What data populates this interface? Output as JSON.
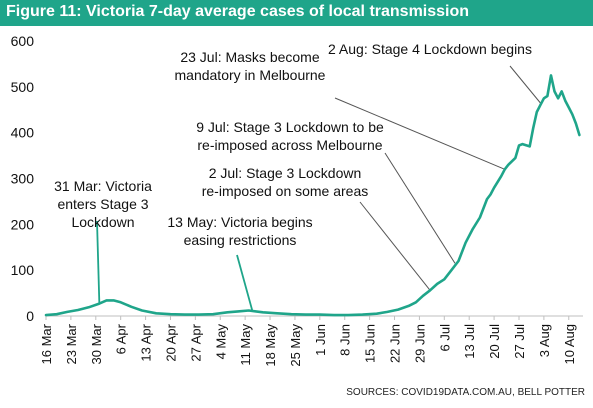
{
  "title": "Figure 11: Victoria 7-day average cases of local transmission",
  "source": "SOURCES: COVID19DATA.COM.AU, BELL POTTER",
  "colors": {
    "header": "#1fa58a",
    "line": "#1fa58a",
    "text": "#111111",
    "axis": "#bfbfbf"
  },
  "chart_data": {
    "type": "line",
    "title": "Figure 11: Victoria 7-day average cases of local transmission",
    "xlabel": "",
    "ylabel": "",
    "ylim": [
      0,
      600
    ],
    "yticks": [
      0,
      100,
      200,
      300,
      400,
      500,
      600
    ],
    "xlim": [
      "2020-03-16",
      "2020-08-14"
    ],
    "xticks": [
      "16 Mar",
      "23 Mar",
      "30 Mar",
      "6 Apr",
      "13 Apr",
      "20 Apr",
      "27 Apr",
      "4 May",
      "11 May",
      "18 May",
      "25 May",
      "1 Jun",
      "8 Jun",
      "15 Jun",
      "22 Jun",
      "29 Jun",
      "6 Jul",
      "13 Jul",
      "20 Jul",
      "27 Jul",
      "3 Aug",
      "10 Aug"
    ],
    "xtick_dates": [
      "2020-03-16",
      "2020-03-23",
      "2020-03-30",
      "2020-04-06",
      "2020-04-13",
      "2020-04-20",
      "2020-04-27",
      "2020-05-04",
      "2020-05-11",
      "2020-05-18",
      "2020-05-25",
      "2020-06-01",
      "2020-06-08",
      "2020-06-15",
      "2020-06-22",
      "2020-06-29",
      "2020-07-06",
      "2020-07-13",
      "2020-07-20",
      "2020-07-27",
      "2020-08-03",
      "2020-08-10"
    ],
    "grid": false,
    "legend": "none",
    "series": [
      {
        "x": [
          "2020-03-16",
          "2020-03-19",
          "2020-03-22",
          "2020-03-25",
          "2020-03-28",
          "2020-03-31",
          "2020-04-02",
          "2020-04-04",
          "2020-04-06",
          "2020-04-09",
          "2020-04-12",
          "2020-04-16",
          "2020-04-20",
          "2020-04-24",
          "2020-04-28",
          "2020-05-02",
          "2020-05-06",
          "2020-05-09",
          "2020-05-12",
          "2020-05-16",
          "2020-05-20",
          "2020-05-24",
          "2020-05-28",
          "2020-06-01",
          "2020-06-05",
          "2020-06-09",
          "2020-06-13",
          "2020-06-17",
          "2020-06-20",
          "2020-06-23",
          "2020-06-26",
          "2020-06-28",
          "2020-06-30",
          "2020-07-02",
          "2020-07-04",
          "2020-07-06",
          "2020-07-08",
          "2020-07-10",
          "2020-07-12",
          "2020-07-14",
          "2020-07-16",
          "2020-07-18",
          "2020-07-19",
          "2020-07-20",
          "2020-07-22",
          "2020-07-23",
          "2020-07-24",
          "2020-07-26",
          "2020-07-27",
          "2020-07-28",
          "2020-07-30",
          "2020-07-31",
          "2020-08-01",
          "2020-08-02",
          "2020-08-03",
          "2020-08-04",
          "2020-08-05",
          "2020-08-06",
          "2020-08-07",
          "2020-08-08",
          "2020-08-09",
          "2020-08-10",
          "2020-08-11",
          "2020-08-12",
          "2020-08-13"
        ],
        "values": [
          2,
          4,
          9,
          13,
          19,
          27,
          34,
          34,
          30,
          20,
          12,
          6,
          4,
          3,
          3,
          4,
          8,
          10,
          12,
          8,
          6,
          4,
          3,
          3,
          2,
          2,
          3,
          5,
          9,
          14,
          22,
          30,
          44,
          56,
          70,
          80,
          100,
          120,
          160,
          190,
          215,
          255,
          265,
          280,
          305,
          320,
          330,
          345,
          372,
          375,
          370,
          410,
          445,
          460,
          475,
          480,
          525,
          490,
          475,
          490,
          470,
          455,
          440,
          420,
          395
        ]
      }
    ],
    "annotations": [
      {
        "text": "31 Mar: Victoria enters Stage 3 Lockdown",
        "lines": [
          "31 Mar: Victoria",
          "enters Stage 3",
          "Lockdown"
        ],
        "date": "2020-03-31",
        "value": 27
      },
      {
        "text": "13 May: Victoria begins easing restrictions",
        "lines": [
          "13 May: Victoria begins",
          "easing restrictions"
        ],
        "date": "2020-05-13",
        "value": 12
      },
      {
        "text": "2 Jul: Stage 3 Lockdown re-imposed on some areas",
        "lines": [
          "2 Jul: Stage 3 Lockdown",
          "re-imposed on some areas"
        ],
        "date": "2020-07-02",
        "value": 56
      },
      {
        "text": "9 Jul: Stage 3 Lockdown to be re-imposed across Melbourne",
        "lines": [
          "9 Jul: Stage 3 Lockdown to be",
          "re-imposed across Melbourne"
        ],
        "date": "2020-07-09",
        "value": 115
      },
      {
        "text": "23 Jul: Masks become mandatory in Melbourne",
        "lines": [
          "23 Jul: Masks become",
          "mandatory in Melbourne"
        ],
        "date": "2020-07-23",
        "value": 320
      },
      {
        "text": "2 Aug: Stage 4 Lockdown begins",
        "lines": [
          "2 Aug: Stage 4 Lockdown begins"
        ],
        "date": "2020-08-02",
        "value": 465
      }
    ]
  }
}
